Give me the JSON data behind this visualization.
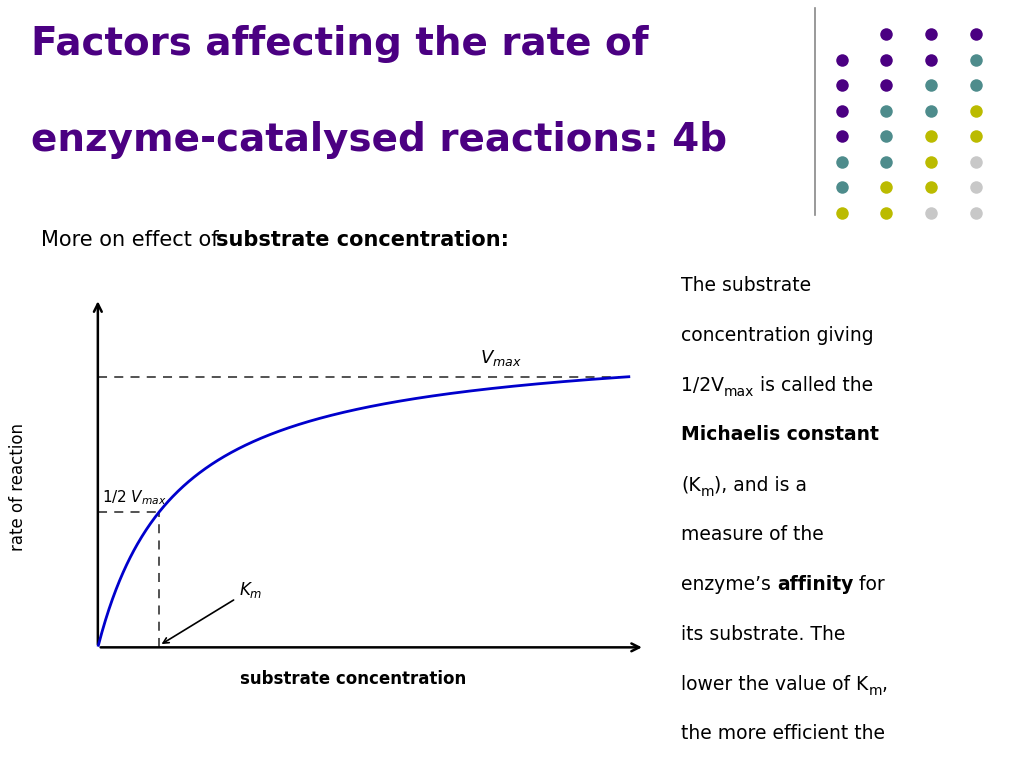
{
  "title_line1": "Factors affecting the rate of",
  "title_line2": "enzyme-catalysed reactions: 4b",
  "title_color": "#4B0082",
  "subtitle_normal": "More on effect of ",
  "subtitle_bold": "substrate concentration:",
  "bg_color": "#FFFFFF",
  "curve_color": "#0000CC",
  "dashed_color": "#444444",
  "xlabel": "substrate concentration",
  "ylabel": "rate of reaction",
  "Vmax": 9.0,
  "Km": 1.5,
  "vmax_display": 7.6,
  "dot_grid": [
    [
      null,
      "#4B0082",
      "#4B0082",
      "#4B0082"
    ],
    [
      "#4B0082",
      "#4B0082",
      "#4B0082",
      "#4E8C8C"
    ],
    [
      "#4B0082",
      "#4B0082",
      "#4E8C8C",
      "#4E8C8C"
    ],
    [
      "#4B0082",
      "#4E8C8C",
      "#4E8C8C",
      "#CCCC00"
    ],
    [
      "#4B0082",
      "#4E8C8C",
      "#CCCC00",
      "#CCCC00"
    ],
    [
      "#4E8C8C",
      "#4E8C8C",
      "#CCCC00",
      "#D3D3D3"
    ],
    [
      "#4E8C8C",
      "#CCCC00",
      "#CCCC00",
      "#D3D3D3"
    ],
    [
      "#CCCC00",
      "#CCCC00",
      "#D3D3D3",
      "#D3D3D3"
    ]
  ]
}
